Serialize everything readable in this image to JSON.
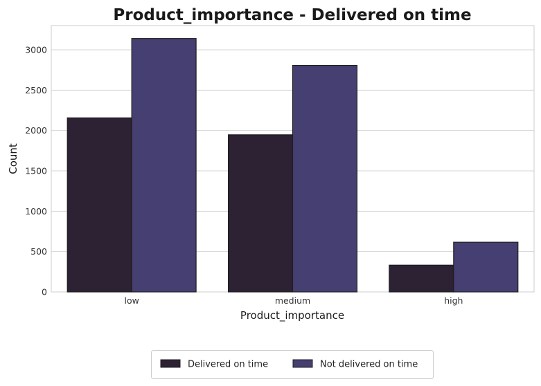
{
  "chart_data": {
    "type": "bar",
    "title": "Product_importance - Delivered on time",
    "xlabel": "Product_importance",
    "ylabel": "Count",
    "categories": [
      "low",
      "medium",
      "high"
    ],
    "series": [
      {
        "name": "Delivered on time",
        "values": [
          2157,
          1947,
          332
        ],
        "color": "#2d2134"
      },
      {
        "name": "Not delivered on time",
        "values": [
          3140,
          2807,
          616
        ],
        "color": "#463f72"
      }
    ],
    "ylim": [
      0,
      3300
    ],
    "yticks": [
      0,
      500,
      1000,
      1500,
      2000,
      2500,
      3000
    ],
    "grid": true,
    "legend_position": "bottom-center",
    "bar_edge_color": "#1f1f1f"
  }
}
